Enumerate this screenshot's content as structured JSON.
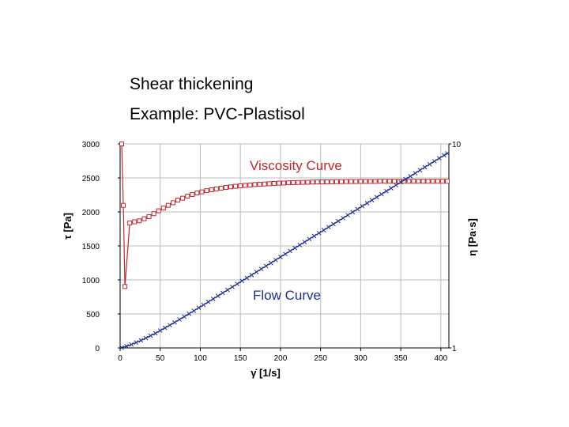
{
  "header": {
    "title": "Shear thickening",
    "subtitle": "Example: PVC-Plastisol"
  },
  "chart_data": {
    "type": "line",
    "x_label": "γ̇ [1/s]",
    "y_label_left": "τ [Pa]",
    "y_label_right": "η [Pa·s]",
    "x_ticks": [
      "0",
      "50",
      "100",
      "150",
      "200",
      "250",
      "300",
      "350",
      "400"
    ],
    "y_left_ticks": [
      "0",
      "500",
      "1000",
      "1500",
      "2000",
      "2500",
      "3000"
    ],
    "y_right_ticks": [
      "1",
      "10"
    ],
    "xlim": [
      0,
      410
    ],
    "ylim_left": [
      0,
      3000
    ],
    "ylim_right": [
      1,
      10
    ],
    "y_right_scale": "log",
    "grid": true,
    "annotations": [
      {
        "text": "Viscosity Curve",
        "color": "#c0272d"
      },
      {
        "text": "Flow Curve",
        "color": "#1f2f8f"
      }
    ],
    "series": [
      {
        "name": "Viscosity Curve",
        "axis": "right",
        "color": "#c0272d",
        "marker": "square",
        "x": [
          2,
          4,
          6,
          12,
          18,
          24,
          30,
          36,
          42,
          48,
          54,
          60,
          66,
          72,
          78,
          84,
          90,
          96,
          102,
          108,
          114,
          120,
          126,
          132,
          138,
          144,
          150,
          156,
          162,
          168,
          174,
          180,
          186,
          192,
          198,
          204,
          210,
          216,
          222,
          228,
          234,
          240,
          246,
          252,
          258,
          264,
          270,
          276,
          282,
          288,
          294,
          300,
          306,
          312,
          318,
          324,
          330,
          336,
          342,
          348,
          354,
          360,
          366,
          372,
          378,
          384,
          390,
          396,
          402,
          408
        ],
        "y": [
          10,
          5.0,
          2.0,
          4.1,
          4.15,
          4.2,
          4.3,
          4.4,
          4.55,
          4.7,
          4.85,
          5.0,
          5.15,
          5.3,
          5.42,
          5.55,
          5.65,
          5.75,
          5.82,
          5.9,
          5.96,
          6.02,
          6.07,
          6.12,
          6.16,
          6.2,
          6.23,
          6.26,
          6.29,
          6.32,
          6.34,
          6.36,
          6.38,
          6.4,
          6.42,
          6.43,
          6.45,
          6.46,
          6.47,
          6.48,
          6.49,
          6.5,
          6.51,
          6.51,
          6.52,
          6.52,
          6.53,
          6.53,
          6.54,
          6.54,
          6.54,
          6.55,
          6.55,
          6.55,
          6.55,
          6.56,
          6.56,
          6.56,
          6.56,
          6.56,
          6.56,
          6.56,
          6.56,
          6.56,
          6.56,
          6.56,
          6.56,
          6.56,
          6.56,
          6.56
        ]
      },
      {
        "name": "Flow Curve",
        "axis": "left",
        "color": "#1f2f8f",
        "marker": "cross",
        "x": [
          2,
          8,
          14,
          20,
          26,
          32,
          38,
          44,
          50,
          56,
          62,
          68,
          74,
          80,
          86,
          92,
          98,
          104,
          110,
          116,
          122,
          128,
          134,
          140,
          146,
          152,
          158,
          164,
          170,
          176,
          182,
          188,
          194,
          200,
          206,
          212,
          218,
          224,
          230,
          236,
          242,
          248,
          254,
          260,
          266,
          272,
          278,
          284,
          290,
          296,
          302,
          308,
          314,
          320,
          326,
          332,
          338,
          344,
          350,
          356,
          362,
          368,
          374,
          380,
          386,
          392,
          398,
          404,
          408
        ],
        "y": [
          5,
          25,
          50,
          80,
          110,
          145,
          180,
          215,
          255,
          295,
          335,
          375,
          418,
          460,
          503,
          546,
          590,
          633,
          677,
          721,
          765,
          809,
          853,
          897,
          941,
          985,
          1029,
          1073,
          1117,
          1161,
          1205,
          1249,
          1293,
          1337,
          1381,
          1425,
          1469,
          1513,
          1557,
          1601,
          1645,
          1689,
          1733,
          1777,
          1821,
          1865,
          1909,
          1953,
          1997,
          2041,
          2085,
          2129,
          2173,
          2217,
          2261,
          2305,
          2349,
          2393,
          2437,
          2481,
          2525,
          2569,
          2613,
          2657,
          2701,
          2745,
          2789,
          2833,
          2861
        ]
      }
    ]
  }
}
